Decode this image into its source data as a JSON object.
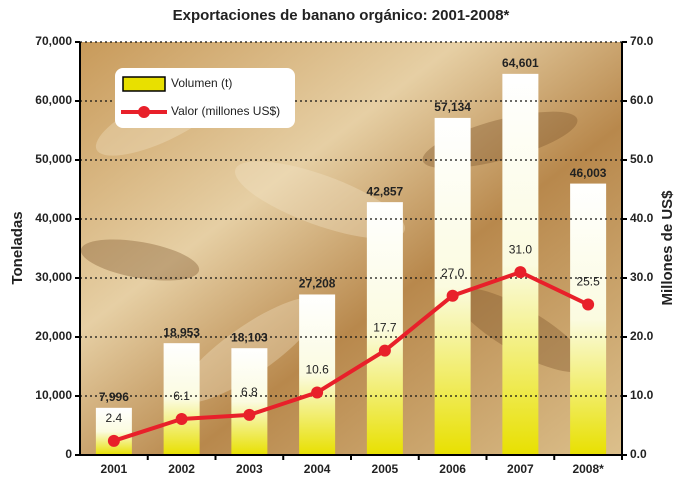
{
  "chart_data": {
    "type": "bar",
    "title": "Exportaciones de banano orgánico: 2001-2008*",
    "y_label": "Toneladas",
    "y2_label": "Millones de US$",
    "categories": [
      "2001",
      "2002",
      "2003",
      "2004",
      "2005",
      "2006",
      "2007",
      "2008*"
    ],
    "series": [
      {
        "name": "Volumen (t)",
        "type": "bar",
        "color": "#e8e000",
        "values": [
          7996,
          18953,
          18103,
          27208,
          42857,
          57134,
          64601,
          46003
        ],
        "value_labels": [
          "7,996",
          "18,953",
          "18,103",
          "27,208",
          "42,857",
          "57,134",
          "64,601",
          "46,003"
        ]
      },
      {
        "name": "Valor (millones US$)",
        "type": "line",
        "color": "#e8202a",
        "axis": "y2",
        "values": [
          2.4,
          6.1,
          6.8,
          10.6,
          17.7,
          27.0,
          31.0,
          25.5
        ],
        "value_labels": [
          "2.4",
          "6.1",
          "6.8",
          "10.6",
          "17.7",
          "27.0",
          "31.0",
          "25.5"
        ]
      }
    ],
    "ylim": [
      0,
      70000
    ],
    "yticks": [
      0,
      {
        "value": 10000,
        "label": "10,000"
      },
      {
        "value": 20000,
        "label": "20,000"
      },
      {
        "value": 30000,
        "label": "30,000"
      },
      {
        "value": 40000,
        "label": "40,000"
      },
      {
        "value": 50000,
        "label": "50,000"
      },
      {
        "value": 60000,
        "label": "60,000"
      },
      {
        "value": 70000,
        "label": "70,000"
      }
    ],
    "y2lim": [
      0,
      70
    ],
    "y2ticks": [
      {
        "value": 0,
        "label": "0.0"
      },
      {
        "value": 10,
        "label": "10.0"
      },
      {
        "value": 20,
        "label": "20.0"
      },
      {
        "value": 30,
        "label": "30.0"
      },
      {
        "value": 40,
        "label": "40.0"
      },
      {
        "value": 50,
        "label": "50.0"
      },
      {
        "value": 60,
        "label": "60.0"
      },
      {
        "value": 70,
        "label": "70.0"
      }
    ],
    "grid": true
  }
}
